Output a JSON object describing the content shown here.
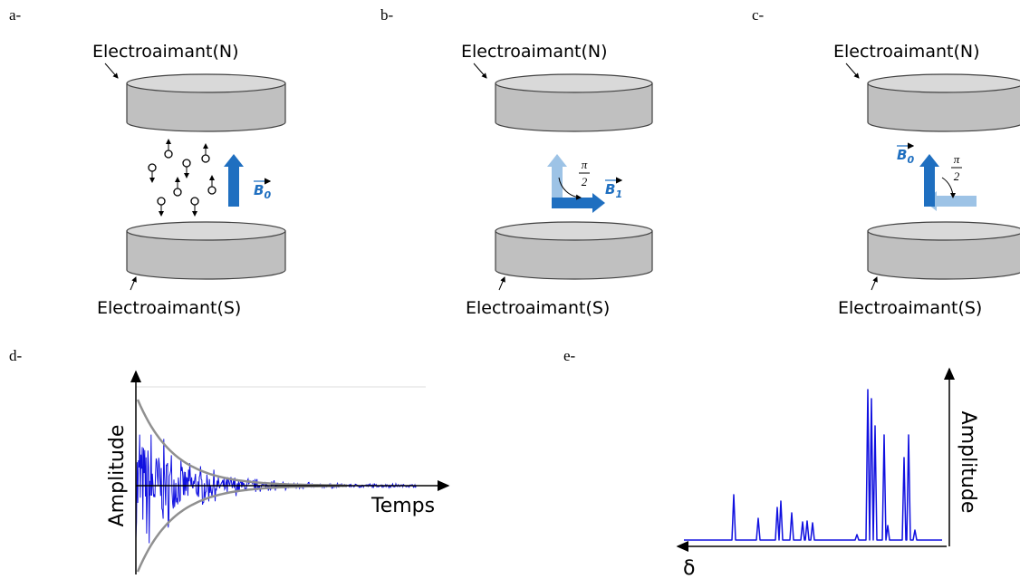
{
  "panels": [
    {
      "label": "a-",
      "top_magnet": "Electroaimant(N)",
      "bottom_magnet": "Electroaimant(S)",
      "vector": {
        "symbol": "B",
        "subscript": "0"
      }
    },
    {
      "label": "b-",
      "top_magnet": "Electroaimant(N)",
      "bottom_magnet": "Electroaimant(S)",
      "vector": {
        "symbol": "B",
        "subscript": "1"
      },
      "angle": {
        "numerator": "π",
        "denominator": "2"
      }
    },
    {
      "label": "c-",
      "top_magnet": "Electroaimant(N)",
      "bottom_magnet": "Electroaimant(S)",
      "vector": {
        "symbol": "B",
        "subscript": "0"
      },
      "angle": {
        "numerator": "π",
        "denominator": "2"
      }
    },
    {
      "label": "d-",
      "y_label": "Amplitude",
      "x_label": "Temps"
    },
    {
      "label": "e-",
      "y_label": "Amplitude",
      "x_label": "δ"
    }
  ]
}
